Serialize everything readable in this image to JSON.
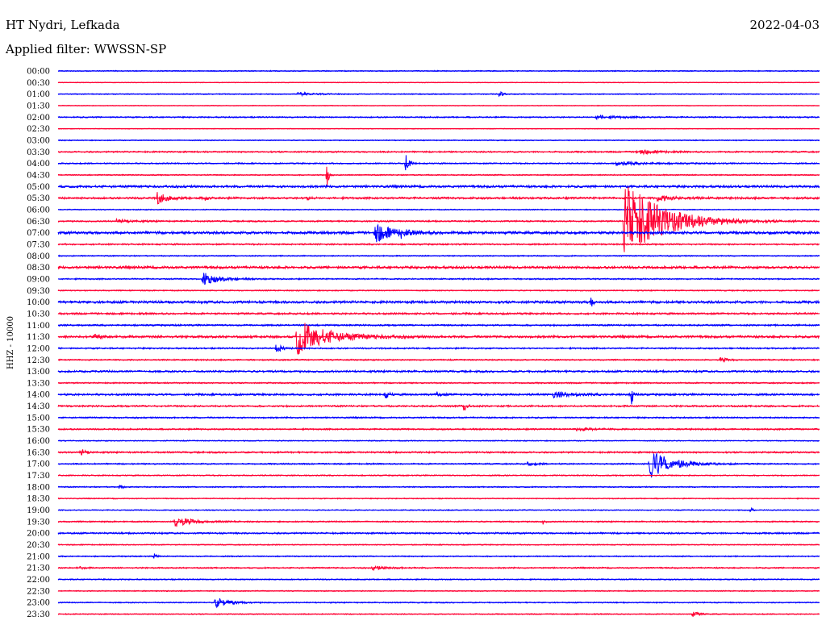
{
  "header": {
    "station": "HT Nydri, Lefkada",
    "filter_label": "Applied filter: WWSSN-SP",
    "date": "2022-04-03"
  },
  "chart_data": {
    "type": "line",
    "title": "HT Nydri, Lefkada",
    "subtitle": "Applied filter: WWSSN-SP",
    "date": "2022-04-03",
    "ylabel": "HHZ - 10000",
    "xlabel": "",
    "grid": false,
    "x_range_minutes": [
      0,
      30
    ],
    "colors": [
      "#0000ff",
      "#ff0033"
    ],
    "rows": [
      "00:00",
      "00:30",
      "01:00",
      "01:30",
      "02:00",
      "02:30",
      "03:00",
      "03:30",
      "04:00",
      "04:30",
      "05:00",
      "05:30",
      "06:00",
      "06:30",
      "07:00",
      "07:30",
      "08:00",
      "08:30",
      "09:00",
      "09:30",
      "10:00",
      "10:30",
      "11:00",
      "11:30",
      "12:00",
      "12:30",
      "13:00",
      "13:30",
      "14:00",
      "14:30",
      "15:00",
      "15:30",
      "16:00",
      "16:30",
      "17:00",
      "17:30",
      "18:00",
      "18:30",
      "19:00",
      "19:30",
      "20:00",
      "20:30",
      "21:00",
      "21:30",
      "22:00",
      "22:30",
      "23:00",
      "23:30"
    ],
    "noise": [
      0.6,
      0.4,
      0.6,
      0.4,
      0.8,
      0.4,
      0.6,
      0.9,
      0.8,
      0.7,
      1.4,
      1.2,
      0.6,
      0.9,
      1.6,
      0.9,
      0.7,
      1.5,
      0.8,
      0.7,
      1.5,
      1.1,
      1.0,
      1.4,
      0.9,
      0.8,
      1.2,
      0.8,
      1.2,
      1.0,
      0.9,
      0.9,
      0.6,
      1.0,
      0.8,
      0.7,
      0.7,
      0.6,
      0.6,
      0.8,
      1.0,
      0.6,
      0.7,
      0.8,
      0.7,
      0.6,
      0.7,
      0.6
    ],
    "events": [
      {
        "row": 2,
        "t": 9.4,
        "amp": 2,
        "dur": 1.0
      },
      {
        "row": 2,
        "t": 17.4,
        "amp": 5,
        "dur": 0.15
      },
      {
        "row": 4,
        "t": 21.2,
        "amp": 2,
        "dur": 1.5
      },
      {
        "row": 7,
        "t": 22.8,
        "amp": 3,
        "dur": 1.0
      },
      {
        "row": 8,
        "t": 13.7,
        "amp": 11,
        "dur": 0.2
      },
      {
        "row": 8,
        "t": 22.0,
        "amp": 2,
        "dur": 2.0
      },
      {
        "row": 9,
        "t": 10.6,
        "amp": 17,
        "dur": 0.1
      },
      {
        "row": 11,
        "t": 3.9,
        "amp": 7,
        "dur": 0.6
      },
      {
        "row": 11,
        "t": 5.8,
        "amp": 3,
        "dur": 0.2
      },
      {
        "row": 11,
        "t": 9.8,
        "amp": 3,
        "dur": 0.2
      },
      {
        "row": 11,
        "t": 23.6,
        "amp": 3,
        "dur": 1.2
      },
      {
        "row": 13,
        "t": 2.3,
        "amp": 2,
        "dur": 1.0
      },
      {
        "row": 13,
        "t": 22.3,
        "amp": 52,
        "dur": 2.3
      },
      {
        "row": 14,
        "t": 12.5,
        "amp": 11,
        "dur": 1.2
      },
      {
        "row": 14,
        "t": 13.5,
        "amp": 4,
        "dur": 0.2
      },
      {
        "row": 18,
        "t": 5.7,
        "amp": 8,
        "dur": 1.0
      },
      {
        "row": 20,
        "t": 21.0,
        "amp": 8,
        "dur": 0.1
      },
      {
        "row": 23,
        "t": 9.4,
        "amp": 22,
        "dur": 1.8
      },
      {
        "row": 23,
        "t": 1.4,
        "amp": 3,
        "dur": 0.5
      },
      {
        "row": 24,
        "t": 8.6,
        "amp": 6,
        "dur": 0.3
      },
      {
        "row": 25,
        "t": 26.1,
        "amp": 3,
        "dur": 0.4
      },
      {
        "row": 28,
        "t": 12.9,
        "amp": 5,
        "dur": 0.2
      },
      {
        "row": 28,
        "t": 14.9,
        "amp": 3,
        "dur": 0.3
      },
      {
        "row": 28,
        "t": 19.5,
        "amp": 3,
        "dur": 1.2
      },
      {
        "row": 28,
        "t": 22.6,
        "amp": 15,
        "dur": 0.1
      },
      {
        "row": 29,
        "t": 16.0,
        "amp": 8,
        "dur": 0.2
      },
      {
        "row": 31,
        "t": 20.4,
        "amp": 2,
        "dur": 1.0
      },
      {
        "row": 33,
        "t": 0.9,
        "amp": 4,
        "dur": 0.3
      },
      {
        "row": 34,
        "t": 23.3,
        "amp": 18,
        "dur": 1.3
      },
      {
        "row": 34,
        "t": 18.5,
        "amp": 2,
        "dur": 0.6
      },
      {
        "row": 36,
        "t": 2.4,
        "amp": 3,
        "dur": 0.2
      },
      {
        "row": 38,
        "t": 27.3,
        "amp": 4,
        "dur": 0.1
      },
      {
        "row": 39,
        "t": 4.6,
        "amp": 7,
        "dur": 1.0
      },
      {
        "row": 39,
        "t": 19.1,
        "amp": 3,
        "dur": 0.1
      },
      {
        "row": 42,
        "t": 3.8,
        "amp": 4,
        "dur": 0.1
      },
      {
        "row": 43,
        "t": 12.4,
        "amp": 2,
        "dur": 1.0
      },
      {
        "row": 43,
        "t": 0.8,
        "amp": 2,
        "dur": 0.3
      },
      {
        "row": 46,
        "t": 6.2,
        "amp": 7,
        "dur": 0.8
      },
      {
        "row": 47,
        "t": 25.0,
        "amp": 3,
        "dur": 0.4
      }
    ]
  }
}
